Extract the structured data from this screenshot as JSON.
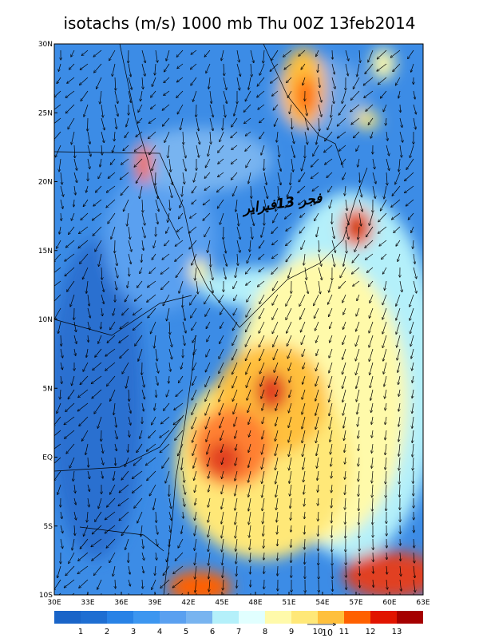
{
  "map": {
    "title": "isotachs (m/s) 1000 mb Thu 00Z 13feb2014",
    "annotation": "فجر 13فبراير",
    "xlim": [
      30,
      63
    ],
    "ylim": [
      -10,
      30
    ],
    "xticks": [
      {
        "value": 30,
        "label": "30E"
      },
      {
        "value": 33,
        "label": "33E"
      },
      {
        "value": 36,
        "label": "36E"
      },
      {
        "value": 39,
        "label": "39E"
      },
      {
        "value": 42,
        "label": "42E"
      },
      {
        "value": 45,
        "label": "45E"
      },
      {
        "value": 48,
        "label": "48E"
      },
      {
        "value": 51,
        "label": "51E"
      },
      {
        "value": 54,
        "label": "54E"
      },
      {
        "value": 57,
        "label": "57E"
      },
      {
        "value": 60,
        "label": "60E"
      },
      {
        "value": 63,
        "label": "63E"
      }
    ],
    "yticks": [
      {
        "value": 30,
        "label": "30N"
      },
      {
        "value": 25,
        "label": "25N"
      },
      {
        "value": 20,
        "label": "20N"
      },
      {
        "value": 15,
        "label": "15N"
      },
      {
        "value": 10,
        "label": "10N"
      },
      {
        "value": 5,
        "label": "5N"
      },
      {
        "value": 0,
        "label": "EQ"
      },
      {
        "value": -5,
        "label": "5S"
      },
      {
        "value": -10,
        "label": "10S"
      }
    ],
    "colorbar": {
      "levels": [
        1,
        2,
        3,
        4,
        5,
        6,
        7,
        8,
        9,
        10,
        11,
        12,
        13
      ],
      "colors": [
        "#1964c8",
        "#1e6ed2",
        "#2882e6",
        "#3c96f0",
        "#5aa0f0",
        "#78b4f0",
        "#b4f0fa",
        "#e1ffff",
        "#fffaaa",
        "#ffe878",
        "#ffc03c",
        "#ff6000",
        "#e11400",
        "#a50000"
      ]
    },
    "vector_label": "10"
  }
}
